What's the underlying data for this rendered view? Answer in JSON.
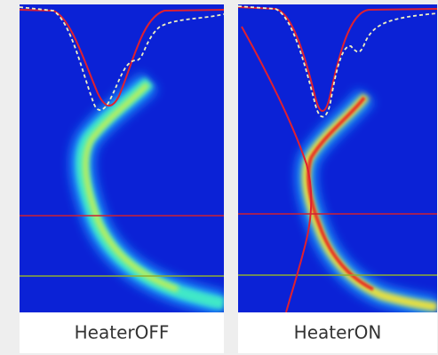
{
  "panels": [
    {
      "label": "HeaterOFF"
    },
    {
      "label": "HeaterON"
    }
  ]
}
